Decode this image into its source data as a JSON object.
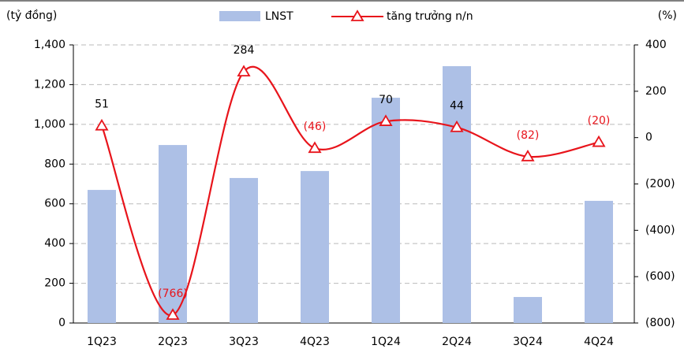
{
  "chart_data": {
    "type": "bar_line",
    "y_label": "(tỷ đồng)",
    "y2_label": "(%)",
    "categories": [
      "1Q23",
      "2Q23",
      "3Q23",
      "4Q23",
      "1Q24",
      "2Q24",
      "3Q24",
      "4Q24"
    ],
    "series": [
      {
        "name": "LNST",
        "type": "bar",
        "color": "#adc0e6",
        "values": [
          670,
          896,
          730,
          765,
          1134,
          1293,
          131,
          615
        ]
      },
      {
        "name": "tăng trưởng n/n",
        "type": "line",
        "axis": "y2",
        "color": "#e8141b",
        "smooth": true,
        "values": [
          51,
          -766,
          284,
          -46,
          70,
          44,
          -82,
          -20
        ],
        "value_labels": [
          "51",
          "(766)",
          "284",
          "(46)",
          "70",
          "44",
          "(82)",
          "(20)"
        ]
      }
    ],
    "ylim": [
      0,
      1400
    ],
    "yticks": [
      0,
      200,
      400,
      600,
      800,
      {
        "value": 1000,
        "label": "1,000"
      },
      {
        "value": 1200,
        "label": "1,200"
      },
      {
        "value": 1400,
        "label": "1,400"
      }
    ],
    "y2lim": [
      -800,
      400
    ],
    "y2ticks": [
      {
        "value": -800,
        "label": "(800)"
      },
      {
        "value": -600,
        "label": "(600)"
      },
      {
        "value": -400,
        "label": "(400)"
      },
      {
        "value": -200,
        "label": "(200)"
      },
      0,
      200,
      400
    ],
    "grid": true,
    "legend": "top"
  }
}
